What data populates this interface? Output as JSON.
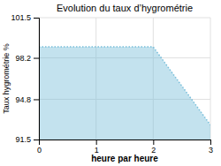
{
  "chart_data": {
    "type": "area",
    "title": "Evolution du taux d’hygrométrie",
    "xlabel": "heure par heure",
    "ylabel": "Taux hygrométrie %",
    "x": [
      0,
      1,
      2,
      3
    ],
    "values": [
      99.1,
      99.1,
      99.1,
      92.7
    ],
    "color": "#7abfda",
    "line_style": "dotted",
    "xlim": [
      0,
      3
    ],
    "ylim": [
      91.5,
      101.5
    ],
    "xticks": [
      0,
      1,
      2,
      3
    ],
    "yticks": [
      91.5,
      94.8,
      98.2,
      101.5
    ],
    "grid": true
  }
}
